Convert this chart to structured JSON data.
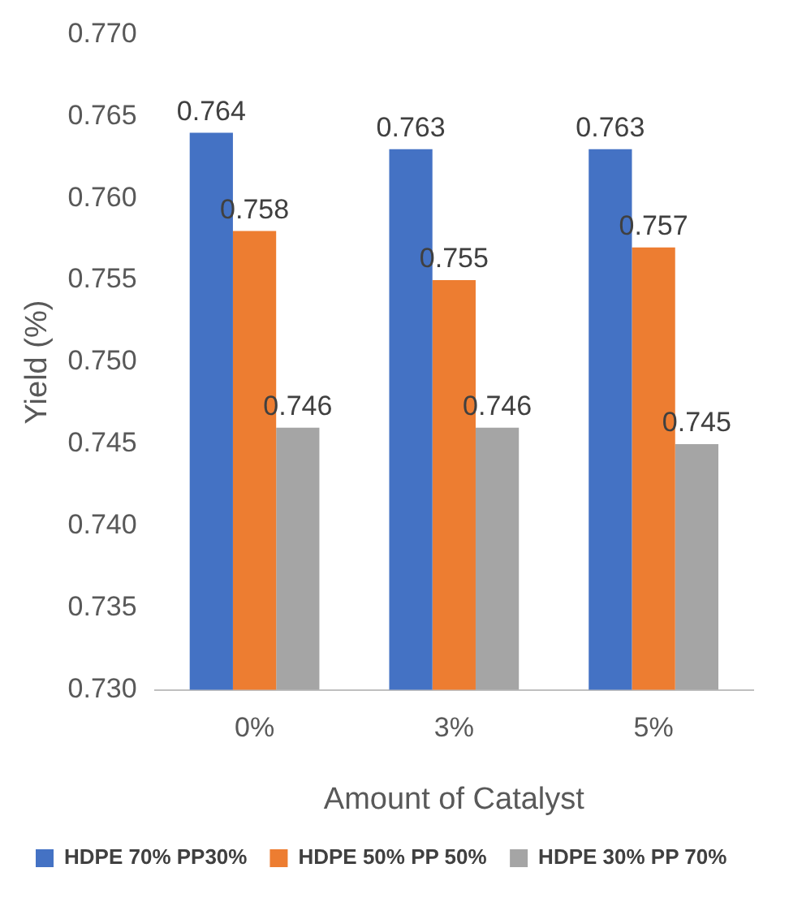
{
  "chart_data": {
    "type": "bar",
    "xlabel": "Amount of Catalyst",
    "ylabel": "Yield (%)",
    "categories": [
      "0%",
      "3%",
      "5%"
    ],
    "series": [
      {
        "name": "HDPE 70% PP30%",
        "color": "#4472c4",
        "values": [
          0.764,
          0.763,
          0.763
        ]
      },
      {
        "name": "HDPE 50% PP 50%",
        "color": "#ed7d31",
        "values": [
          0.758,
          0.755,
          0.757
        ]
      },
      {
        "name": "HDPE 30% PP 70%",
        "color": "#a5a5a5",
        "values": [
          0.746,
          0.746,
          0.745
        ]
      }
    ],
    "ylim": [
      0.73,
      0.77
    ],
    "yticks": [
      {
        "value": 0.73,
        "label": "0.730"
      },
      {
        "value": 0.735,
        "label": "0.735"
      },
      {
        "value": 0.74,
        "label": "0.740"
      },
      {
        "value": 0.745,
        "label": "0.745"
      },
      {
        "value": 0.75,
        "label": "0.750"
      },
      {
        "value": 0.755,
        "label": "0.755"
      },
      {
        "value": 0.76,
        "label": "0.760"
      },
      {
        "value": 0.765,
        "label": "0.765"
      },
      {
        "value": 0.77,
        "label": "0.770"
      }
    ],
    "data_labels": true,
    "grid": false,
    "legend": "bottom"
  }
}
